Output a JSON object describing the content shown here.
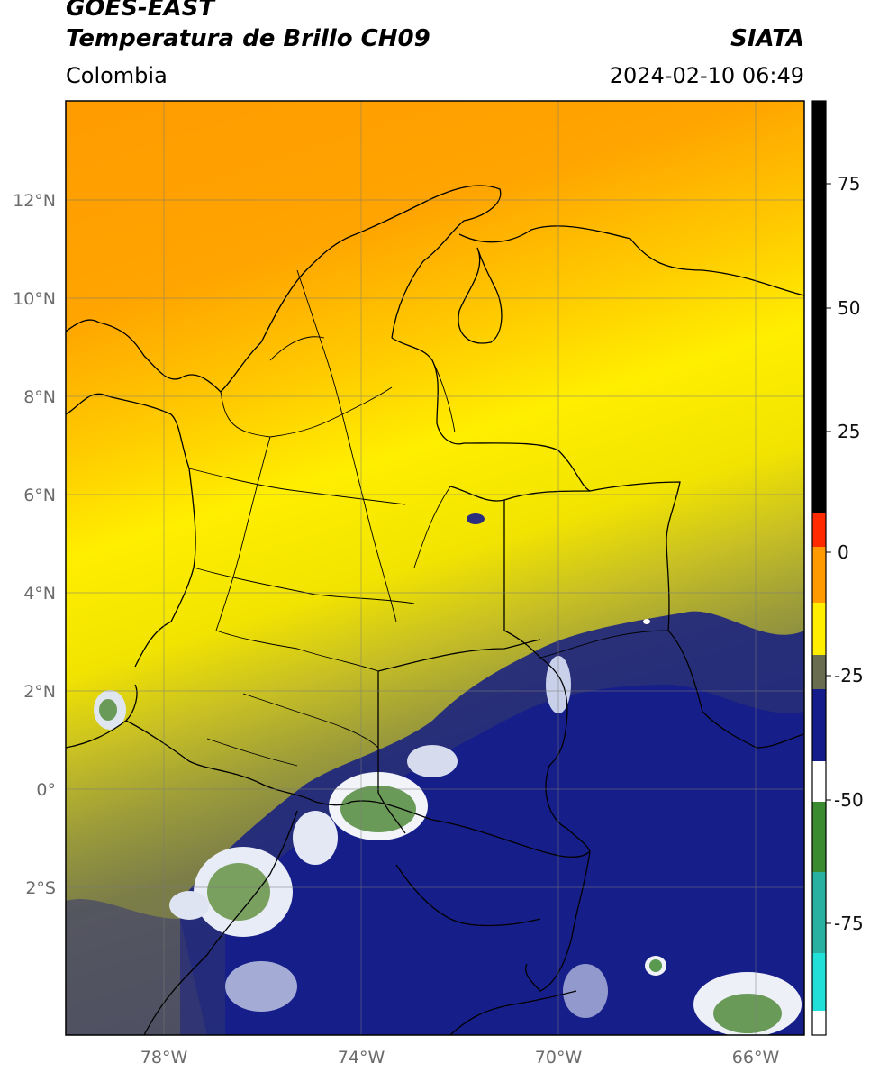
{
  "header": {
    "satellite": "GOES-EAST",
    "product": "Temperatura de Brillo CH09",
    "agency": "SIATA",
    "region": "Colombia",
    "datetime": "2024-02-10 06:49"
  },
  "map": {
    "lat_labels": [
      "12°N",
      "10°N",
      "8°N",
      "6°N",
      "4°N",
      "2°N",
      "0°",
      "2°S"
    ],
    "lon_labels": [
      "78°W",
      "74°W",
      "70°W",
      "66°W"
    ]
  },
  "colorbar": {
    "ticks": [
      "75",
      "50",
      "25",
      "0",
      "-25",
      "-50",
      "-75"
    ],
    "colors": {
      "black": "#000000",
      "red": "#ff2000",
      "orange": "#ff9a00",
      "yellow": "#ffee00",
      "olive": "#8a8a3c",
      "navy": "#101a8a",
      "white": "#ffffff",
      "green": "#3a8a30",
      "cyan": "#20d8d0"
    }
  }
}
